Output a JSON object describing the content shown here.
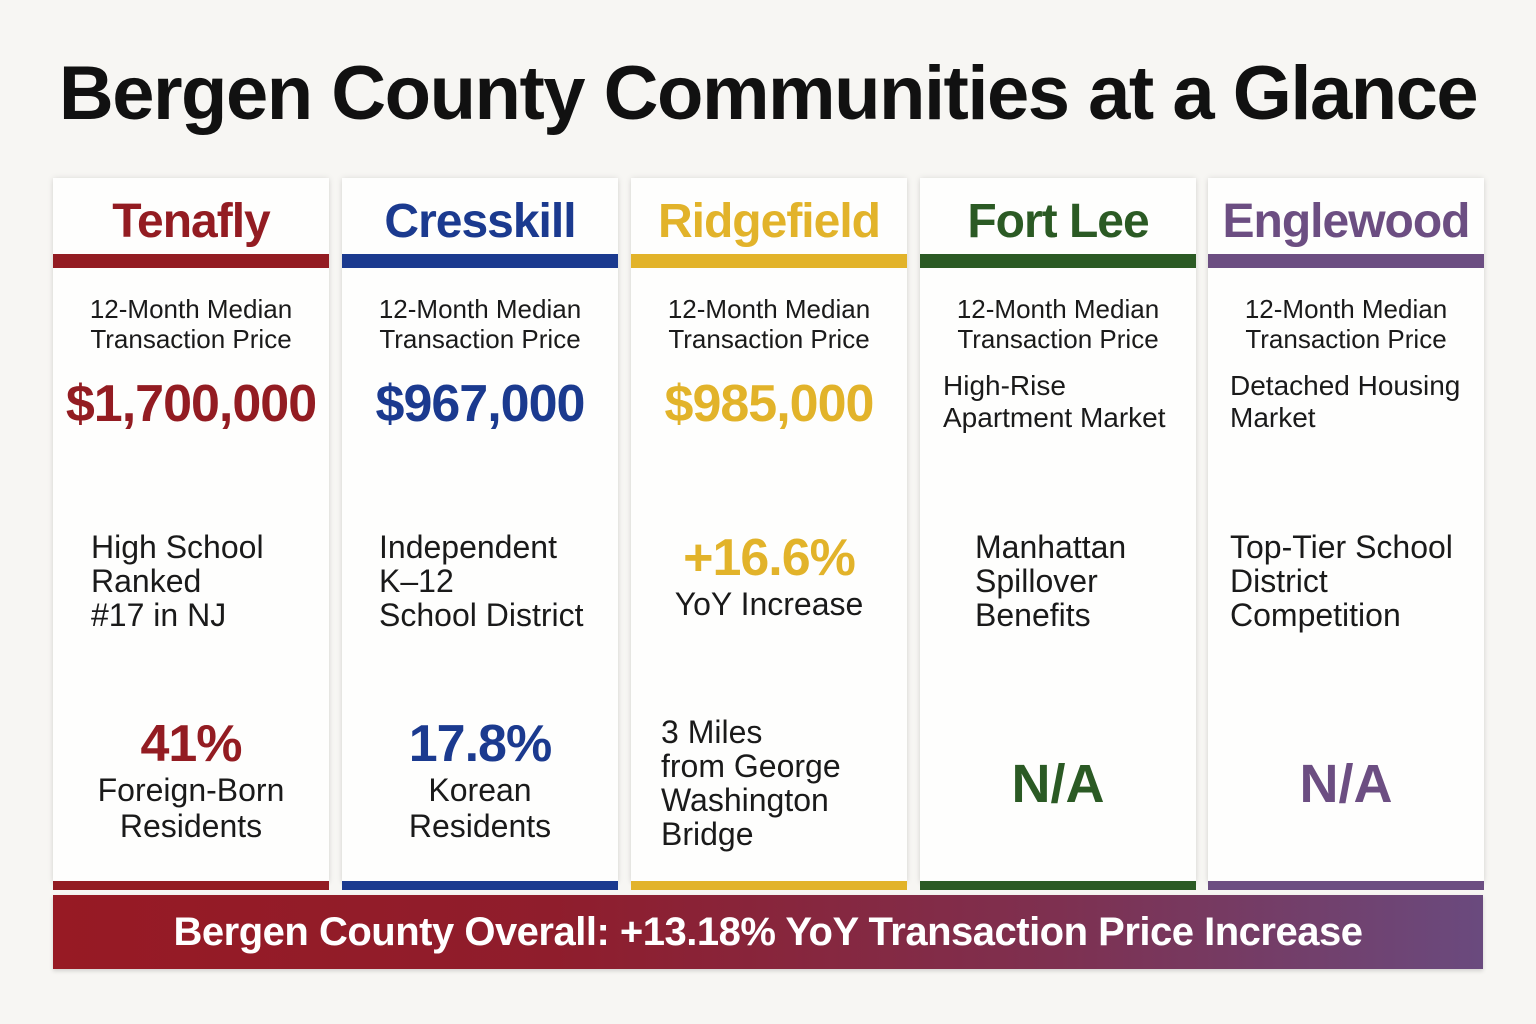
{
  "title": "Bergen County Communities at a Glance",
  "colors": {
    "tenafly": "#931c22",
    "cresskill": "#1b3a8f",
    "ridgefield": "#e2b32a",
    "fort_lee": "#2b5a24",
    "englewood": "#6c4e82"
  },
  "cards": {
    "tenafly": {
      "name": "Tenafly",
      "metric_label": "12-Month Median\nTransaction Price",
      "metric_value": "$1,700,000",
      "feature": "High School\nRanked\n#17 in NJ",
      "stat_value": "41%",
      "stat_label": "Foreign-Born\nResidents"
    },
    "cresskill": {
      "name": "Cresskill",
      "metric_label": "12-Month Median\nTransaction Price",
      "metric_value": "$967,000",
      "feature": "Independent\nK–12\nSchool District",
      "stat_value": "17.8%",
      "stat_label": "Korean\nResidents"
    },
    "ridgefield": {
      "name": "Ridgefield",
      "metric_label": "12-Month Median\nTransaction Price",
      "metric_value": "$985,000",
      "growth_value": "+16.6%",
      "growth_label": "YoY Increase",
      "feature": "3 Miles\nfrom George\nWashington\nBridge"
    },
    "fort_lee": {
      "name": "Fort Lee",
      "metric_label": "12-Month Median\nTransaction Price",
      "market": "High-Rise\nApartment Market",
      "feature": "Manhattan\nSpillover\nBenefits",
      "na": "N/A"
    },
    "englewood": {
      "name": "Englewood",
      "metric_label": "12-Month Median\nTransaction Price",
      "market": "Detached Housing\nMarket",
      "feature": "Top-Tier School\nDistrict\nCompetition",
      "na": "N/A"
    }
  },
  "footer": "Bergen County Overall: +13.18% YoY Transaction Price Increase"
}
